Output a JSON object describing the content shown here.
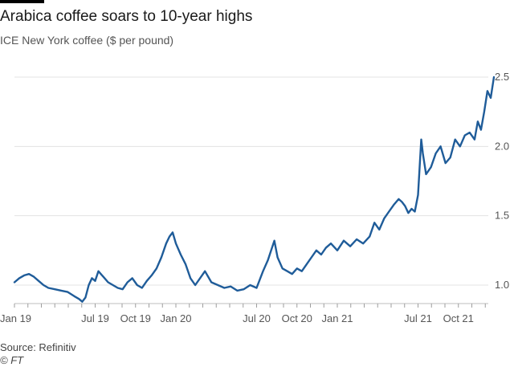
{
  "chart_data": {
    "type": "line",
    "title": "Arabica coffee soars to 10-year highs",
    "subtitle": "ICE New York coffee ($ per pound)",
    "source": "Source: Refinitiv",
    "credit": "© FT",
    "ylim": [
      0.85,
      2.55
    ],
    "yticks": [
      1.0,
      1.5,
      2.0,
      2.5
    ],
    "ytick_labels": [
      "1.0",
      "1.5",
      "2.0",
      "2.5"
    ],
    "grid": true,
    "line_color": "#1f5c99",
    "x_range": [
      "2019-01-01",
      "2021-12-31"
    ],
    "x_ticks": [
      {
        "label": "Jan 19",
        "t": 0.0
      },
      {
        "label": "Jul 19",
        "t": 0.5
      },
      {
        "label": "Oct 19",
        "t": 0.75
      },
      {
        "label": "Jan 20",
        "t": 1.0
      },
      {
        "label": "Jul 20",
        "t": 1.5
      },
      {
        "label": "Oct 20",
        "t": 1.75
      },
      {
        "label": "Jan 21",
        "t": 2.0
      },
      {
        "label": "Jul 21",
        "t": 2.5
      },
      {
        "label": "Oct 21",
        "t": 2.75
      }
    ],
    "series": [
      {
        "name": "ICE New York coffee",
        "x_years_since_jan19": [
          0.0,
          0.03,
          0.06,
          0.09,
          0.12,
          0.15,
          0.18,
          0.21,
          0.25,
          0.29,
          0.33,
          0.37,
          0.4,
          0.42,
          0.44,
          0.46,
          0.48,
          0.5,
          0.52,
          0.55,
          0.58,
          0.61,
          0.64,
          0.67,
          0.7,
          0.73,
          0.76,
          0.79,
          0.82,
          0.85,
          0.88,
          0.91,
          0.94,
          0.96,
          0.98,
          1.0,
          1.03,
          1.06,
          1.09,
          1.12,
          1.15,
          1.18,
          1.22,
          1.26,
          1.3,
          1.34,
          1.38,
          1.42,
          1.46,
          1.5,
          1.54,
          1.57,
          1.59,
          1.61,
          1.63,
          1.66,
          1.69,
          1.72,
          1.75,
          1.78,
          1.81,
          1.84,
          1.87,
          1.9,
          1.93,
          1.96,
          2.0,
          2.04,
          2.08,
          2.12,
          2.16,
          2.2,
          2.23,
          2.26,
          2.29,
          2.32,
          2.35,
          2.38,
          2.4,
          2.42,
          2.44,
          2.46,
          2.48,
          2.5,
          2.51,
          2.52,
          2.53,
          2.55,
          2.58,
          2.61,
          2.64,
          2.67,
          2.7,
          2.73,
          2.76,
          2.79,
          2.82,
          2.85,
          2.87,
          2.89,
          2.91,
          2.93,
          2.95,
          2.97
        ],
        "values": [
          1.02,
          1.05,
          1.07,
          1.08,
          1.06,
          1.03,
          1.0,
          0.98,
          0.97,
          0.96,
          0.95,
          0.92,
          0.9,
          0.88,
          0.91,
          1.0,
          1.05,
          1.03,
          1.1,
          1.06,
          1.02,
          1.0,
          0.98,
          0.97,
          1.02,
          1.05,
          1.0,
          0.98,
          1.03,
          1.07,
          1.12,
          1.2,
          1.3,
          1.35,
          1.38,
          1.3,
          1.22,
          1.15,
          1.05,
          1.0,
          1.05,
          1.1,
          1.02,
          1.0,
          0.98,
          0.99,
          0.96,
          0.97,
          1.0,
          0.98,
          1.1,
          1.18,
          1.25,
          1.32,
          1.2,
          1.12,
          1.1,
          1.08,
          1.12,
          1.1,
          1.15,
          1.2,
          1.25,
          1.22,
          1.27,
          1.3,
          1.25,
          1.32,
          1.28,
          1.33,
          1.3,
          1.35,
          1.45,
          1.4,
          1.48,
          1.53,
          1.58,
          1.62,
          1.6,
          1.57,
          1.52,
          1.55,
          1.53,
          1.65,
          1.85,
          2.05,
          1.95,
          1.8,
          1.85,
          1.95,
          2.0,
          1.88,
          1.92,
          2.05,
          2.0,
          2.08,
          2.1,
          2.05,
          2.18,
          2.12,
          2.25,
          2.4,
          2.35,
          2.5
        ]
      }
    ]
  }
}
